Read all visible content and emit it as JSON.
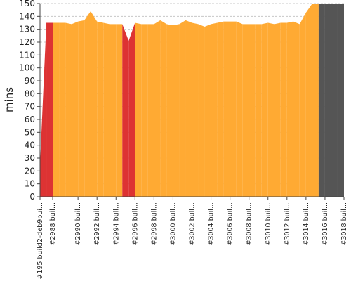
{
  "chart_data": {
    "type": "area",
    "title": "",
    "xlabel": "",
    "ylabel": "mins",
    "ylim": [
      0,
      150
    ],
    "yticks": [
      0,
      10,
      20,
      30,
      40,
      50,
      60,
      70,
      80,
      90,
      100,
      110,
      120,
      130,
      140,
      150
    ],
    "grid": true,
    "legend": "none",
    "x_tick_labels": [
      "#195 build2-deb9bui...",
      "#2988 buil...",
      "#2990 buil...",
      "#2992 buil...",
      "#2994 buil...",
      "#2996 buil...",
      "#2998 buil...",
      "#3000 buil...",
      "#3002 buil...",
      "#3004 buil...",
      "#3006 buil...",
      "#3008 buil...",
      "#3010 buil...",
      "#3012 buil...",
      "#3014 buil...",
      "#3016 buil...",
      "#3018 buil..."
    ],
    "colors": {
      "success": "#ffaa33",
      "failure": "#dd3333",
      "stable": "#55aa77",
      "aborted": "#555555",
      "grid": "#c8c8c8"
    },
    "builds": [
      {
        "label": "#195 build2-deb9bui...",
        "value": 25,
        "status": "stable"
      },
      {
        "label": "",
        "value": 135,
        "status": "failure"
      },
      {
        "label": "#2988 buil...",
        "value": 135,
        "status": "success"
      },
      {
        "label": "",
        "value": 135,
        "status": "success"
      },
      {
        "label": "",
        "value": 135,
        "status": "success"
      },
      {
        "label": "",
        "value": 134,
        "status": "success"
      },
      {
        "label": "#2990 buil...",
        "value": 136,
        "status": "success"
      },
      {
        "label": "",
        "value": 137,
        "status": "success"
      },
      {
        "label": "",
        "value": 144,
        "status": "success"
      },
      {
        "label": "#2992 buil...",
        "value": 136,
        "status": "success"
      },
      {
        "label": "",
        "value": 135,
        "status": "success"
      },
      {
        "label": "",
        "value": 134,
        "status": "success"
      },
      {
        "label": "#2994 buil...",
        "value": 134,
        "status": "success"
      },
      {
        "label": "",
        "value": 134,
        "status": "success"
      },
      {
        "label": "",
        "value": 121,
        "status": "failure"
      },
      {
        "label": "#2996 buil...",
        "value": 135,
        "status": "success"
      },
      {
        "label": "",
        "value": 134,
        "status": "success"
      },
      {
        "label": "",
        "value": 134,
        "status": "success"
      },
      {
        "label": "#2998 buil...",
        "value": 134,
        "status": "success"
      },
      {
        "label": "",
        "value": 137,
        "status": "success"
      },
      {
        "label": "",
        "value": 134,
        "status": "success"
      },
      {
        "label": "#3000 buil...",
        "value": 133,
        "status": "success"
      },
      {
        "label": "",
        "value": 134,
        "status": "success"
      },
      {
        "label": "",
        "value": 137,
        "status": "success"
      },
      {
        "label": "#3002 buil...",
        "value": 135,
        "status": "success"
      },
      {
        "label": "",
        "value": 134,
        "status": "success"
      },
      {
        "label": "",
        "value": 132,
        "status": "success"
      },
      {
        "label": "#3004 buil...",
        "value": 134,
        "status": "success"
      },
      {
        "label": "",
        "value": 135,
        "status": "success"
      },
      {
        "label": "",
        "value": 136,
        "status": "success"
      },
      {
        "label": "#3006 buil...",
        "value": 136,
        "status": "success"
      },
      {
        "label": "",
        "value": 136,
        "status": "success"
      },
      {
        "label": "",
        "value": 134,
        "status": "success"
      },
      {
        "label": "#3008 buil...",
        "value": 134,
        "status": "success"
      },
      {
        "label": "",
        "value": 134,
        "status": "success"
      },
      {
        "label": "",
        "value": 134,
        "status": "success"
      },
      {
        "label": "#3010 buil...",
        "value": 135,
        "status": "success"
      },
      {
        "label": "",
        "value": 134,
        "status": "success"
      },
      {
        "label": "",
        "value": 135,
        "status": "success"
      },
      {
        "label": "#3012 buil...",
        "value": 135,
        "status": "success"
      },
      {
        "label": "",
        "value": 136,
        "status": "success"
      },
      {
        "label": "",
        "value": 134,
        "status": "success"
      },
      {
        "label": "#3014 buil...",
        "value": 143,
        "status": "success"
      },
      {
        "label": "",
        "value": 151,
        "status": "success"
      },
      {
        "label": "",
        "value": 151,
        "status": "aborted"
      },
      {
        "label": "#3016 buil...",
        "value": 151,
        "status": "aborted"
      },
      {
        "label": "",
        "value": 151,
        "status": "aborted"
      },
      {
        "label": "",
        "value": 151,
        "status": "aborted"
      },
      {
        "label": "#3018 buil...",
        "value": 151,
        "status": "aborted"
      }
    ]
  }
}
